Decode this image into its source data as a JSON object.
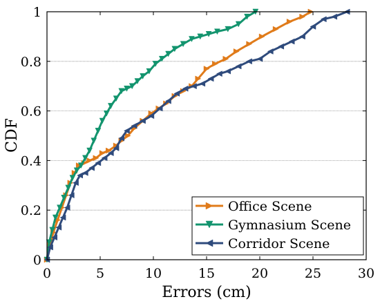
{
  "chart_data": {
    "type": "line",
    "title": "",
    "xlabel": "Errors (cm)",
    "ylabel": "CDF",
    "xlim": [
      0,
      30
    ],
    "ylim": [
      0,
      1
    ],
    "xticks": [
      0,
      5,
      10,
      15,
      20,
      25,
      30
    ],
    "yticks": [
      0,
      0.2,
      0.4,
      0.6,
      0.8,
      1
    ],
    "xtick_labels": [
      "0",
      "5",
      "10",
      "15",
      "20",
      "25",
      "30"
    ],
    "ytick_labels": [
      "0",
      "0.2",
      "0.4",
      "0.6",
      "0.8",
      "1"
    ],
    "grid": "horizontal dotted lines at 0.2, 0.4, 0.6 and 0.8, partially hidden",
    "legend_position": "bottom-right",
    "series": [
      {
        "name": "Office Scene",
        "color": "#E07B1A",
        "marker": "triangle-right",
        "x": [
          0,
          0.3,
          0.6,
          1.0,
          1.4,
          1.8,
          2.2,
          2.6,
          3.0,
          3.5,
          4.0,
          4.6,
          5.2,
          5.8,
          6.5,
          7.0,
          7.6,
          8.2,
          9.0,
          9.8,
          10.5,
          11.2,
          12.0,
          12.8,
          13.6,
          14.2,
          15.0,
          15.8,
          16.8,
          17.8,
          19.0,
          20.2,
          21.5,
          22.8,
          24.0,
          24.8
        ],
        "y": [
          0,
          0.06,
          0.11,
          0.16,
          0.21,
          0.26,
          0.31,
          0.35,
          0.38,
          0.39,
          0.4,
          0.41,
          0.43,
          0.44,
          0.46,
          0.48,
          0.5,
          0.53,
          0.56,
          0.59,
          0.61,
          0.63,
          0.66,
          0.68,
          0.7,
          0.73,
          0.77,
          0.79,
          0.81,
          0.84,
          0.87,
          0.9,
          0.93,
          0.96,
          0.98,
          1.0
        ]
      },
      {
        "name": "Gymnasium Scene",
        "color": "#13946E",
        "marker": "triangle-down",
        "x": [
          0,
          0.2,
          0.5,
          0.8,
          1.2,
          1.6,
          2.0,
          2.4,
          2.8,
          3.2,
          3.6,
          4.0,
          4.4,
          4.8,
          5.2,
          5.6,
          6.0,
          6.5,
          7.0,
          7.5,
          8.0,
          8.5,
          9.0,
          9.6,
          10.2,
          10.8,
          11.4,
          12.0,
          12.8,
          13.6,
          14.4,
          15.2,
          16.0,
          17.0,
          18.0,
          18.8,
          19.6
        ],
        "y": [
          0,
          0.07,
          0.12,
          0.17,
          0.21,
          0.25,
          0.29,
          0.33,
          0.36,
          0.38,
          0.41,
          0.44,
          0.48,
          0.52,
          0.56,
          0.59,
          0.62,
          0.65,
          0.68,
          0.69,
          0.7,
          0.72,
          0.74,
          0.76,
          0.79,
          0.81,
          0.83,
          0.85,
          0.87,
          0.89,
          0.9,
          0.91,
          0.92,
          0.93,
          0.95,
          0.98,
          1.0
        ]
      },
      {
        "name": "Corridor Scene",
        "color": "#2F4B7C",
        "marker": "triangle-left",
        "x": [
          0,
          0.3,
          0.7,
          1.1,
          1.5,
          1.9,
          2.3,
          2.7,
          3.1,
          3.6,
          4.2,
          4.8,
          5.4,
          6.0,
          6.5,
          7.0,
          7.5,
          8.2,
          9.0,
          9.8,
          10.6,
          11.4,
          12.2,
          13.0,
          13.8,
          14.6,
          15.4,
          16.2,
          17.0,
          18.0,
          19.0,
          20.0,
          21.0,
          22.0,
          23.0,
          24.0,
          25.0,
          26.0,
          27.0,
          28.2
        ],
        "y": [
          0,
          0.05,
          0.09,
          0.13,
          0.17,
          0.21,
          0.26,
          0.31,
          0.34,
          0.35,
          0.37,
          0.39,
          0.41,
          0.43,
          0.45,
          0.49,
          0.52,
          0.54,
          0.56,
          0.58,
          0.61,
          0.64,
          0.67,
          0.69,
          0.7,
          0.71,
          0.73,
          0.75,
          0.76,
          0.78,
          0.8,
          0.81,
          0.84,
          0.86,
          0.88,
          0.9,
          0.94,
          0.97,
          0.98,
          1.0
        ]
      }
    ]
  }
}
